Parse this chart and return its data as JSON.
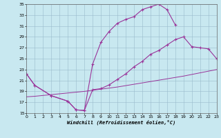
{
  "bg_color": "#c8e8f0",
  "grid_color": "#99bbcc",
  "line_color": "#993399",
  "xlabel": "Windchill (Refroidissement éolien,°C)",
  "xmin": 0,
  "xmax": 23,
  "ymin": 15,
  "ymax": 35,
  "yticks": [
    15,
    17,
    19,
    21,
    23,
    25,
    27,
    29,
    31,
    33,
    35
  ],
  "xticks": [
    0,
    1,
    2,
    3,
    4,
    5,
    6,
    7,
    8,
    9,
    10,
    11,
    12,
    13,
    14,
    15,
    16,
    17,
    18,
    19,
    20,
    21,
    22,
    23
  ],
  "line1_x": [
    0,
    1,
    3,
    5,
    6,
    7,
    8,
    9,
    10,
    11,
    12,
    13,
    14,
    15,
    16,
    17,
    18
  ],
  "line1_y": [
    22.2,
    20.1,
    18.2,
    17.2,
    15.6,
    15.5,
    24.0,
    28.0,
    30.0,
    31.5,
    32.2,
    32.7,
    34.0,
    34.5,
    35.0,
    34.0,
    31.2
  ],
  "line2_x": [
    0,
    1,
    3,
    5,
    6,
    7,
    8,
    9,
    10,
    11,
    12,
    13,
    14,
    15,
    16,
    17,
    18,
    19,
    20,
    21,
    22,
    23
  ],
  "line2_y": [
    22.2,
    20.1,
    18.2,
    17.2,
    15.6,
    15.5,
    19.3,
    19.5,
    20.2,
    21.2,
    22.2,
    23.5,
    24.5,
    25.8,
    26.5,
    27.5,
    28.5,
    29.0,
    27.2,
    27.0,
    26.8,
    25.0
  ],
  "line3_x": [
    0,
    1,
    3,
    5,
    7,
    9,
    11,
    13,
    15,
    17,
    19,
    21,
    23
  ],
  "line3_y": [
    18.0,
    18.1,
    18.4,
    18.7,
    19.0,
    19.4,
    19.8,
    20.3,
    20.8,
    21.3,
    21.8,
    22.4,
    23.0
  ]
}
